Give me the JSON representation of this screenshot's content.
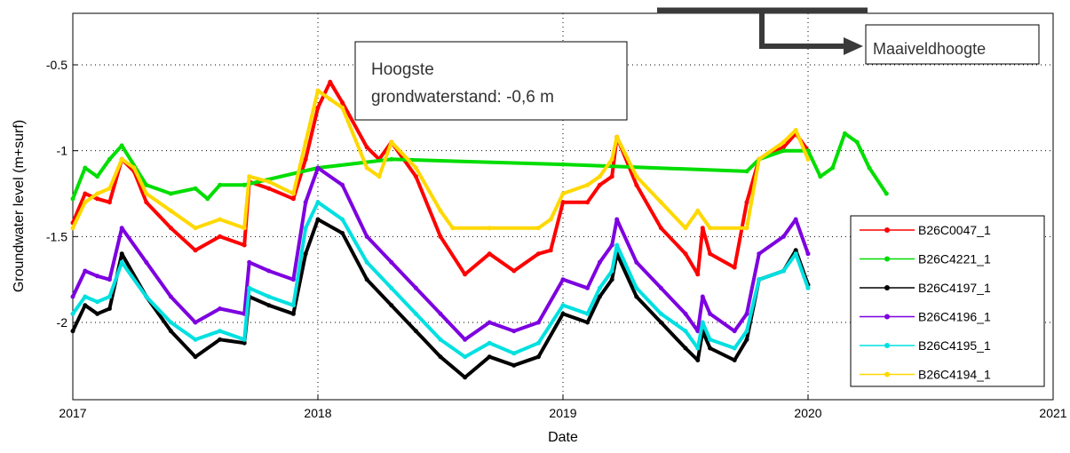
{
  "chart_data": {
    "type": "line",
    "xlabel": "Date",
    "ylabel": "Groundwater level (m+surf)",
    "xlim": [
      2017,
      2021
    ],
    "ylim": [
      -2.45,
      -0.2
    ],
    "y_reversed": true,
    "grid": true,
    "grid_style": "dotted",
    "legend_position": "right",
    "x_ticks": [
      2017,
      2018,
      2019,
      2020,
      2021
    ],
    "x_tick_labels": [
      "2017",
      "2018",
      "2019",
      "2020",
      "2021"
    ],
    "y_ticks": [
      -0.5,
      -1,
      -1.5,
      -2
    ],
    "y_tick_labels": [
      "-0.5",
      "-1",
      "-1.5",
      "-2"
    ],
    "series": [
      {
        "name": "B26C0047_1",
        "color": "#ff0000",
        "points": [
          [
            2017.0,
            -1.42
          ],
          [
            2017.05,
            -1.25
          ],
          [
            2017.1,
            -1.28
          ],
          [
            2017.15,
            -1.3
          ],
          [
            2017.2,
            -1.05
          ],
          [
            2017.25,
            -1.12
          ],
          [
            2017.3,
            -1.3
          ],
          [
            2017.4,
            -1.45
          ],
          [
            2017.5,
            -1.58
          ],
          [
            2017.6,
            -1.5
          ],
          [
            2017.7,
            -1.55
          ],
          [
            2017.72,
            -1.18
          ],
          [
            2017.8,
            -1.22
          ],
          [
            2017.9,
            -1.28
          ],
          [
            2017.95,
            -1.05
          ],
          [
            2018.0,
            -0.75
          ],
          [
            2018.05,
            -0.6
          ],
          [
            2018.1,
            -0.72
          ],
          [
            2018.2,
            -0.98
          ],
          [
            2018.25,
            -1.05
          ],
          [
            2018.3,
            -0.95
          ],
          [
            2018.4,
            -1.15
          ],
          [
            2018.5,
            -1.5
          ],
          [
            2018.6,
            -1.72
          ],
          [
            2018.7,
            -1.6
          ],
          [
            2018.8,
            -1.7
          ],
          [
            2018.9,
            -1.6
          ],
          [
            2018.95,
            -1.58
          ],
          [
            2019.0,
            -1.3
          ],
          [
            2019.1,
            -1.3
          ],
          [
            2019.15,
            -1.2
          ],
          [
            2019.2,
            -1.15
          ],
          [
            2019.22,
            -0.92
          ],
          [
            2019.3,
            -1.2
          ],
          [
            2019.4,
            -1.45
          ],
          [
            2019.5,
            -1.6
          ],
          [
            2019.55,
            -1.72
          ],
          [
            2019.57,
            -1.45
          ],
          [
            2019.6,
            -1.6
          ],
          [
            2019.7,
            -1.68
          ],
          [
            2019.75,
            -1.3
          ],
          [
            2019.8,
            -1.05
          ],
          [
            2019.9,
            -0.98
          ],
          [
            2019.95,
            -0.9
          ],
          [
            2020.0,
            -1.0
          ]
        ]
      },
      {
        "name": "B26C4221_1",
        "color": "#00dd00",
        "points": [
          [
            2017.0,
            -1.28
          ],
          [
            2017.05,
            -1.1
          ],
          [
            2017.1,
            -1.15
          ],
          [
            2017.15,
            -1.05
          ],
          [
            2017.2,
            -0.97
          ],
          [
            2017.3,
            -1.2
          ],
          [
            2017.4,
            -1.25
          ],
          [
            2017.5,
            -1.22
          ],
          [
            2017.55,
            -1.28
          ],
          [
            2017.6,
            -1.2
          ],
          [
            2017.7,
            -1.2
          ],
          [
            2018.0,
            -1.1
          ],
          [
            2018.3,
            -1.05
          ],
          [
            2019.0,
            -1.08
          ],
          [
            2019.75,
            -1.12
          ],
          [
            2019.8,
            -1.05
          ],
          [
            2019.9,
            -1.0
          ],
          [
            2020.0,
            -1.0
          ],
          [
            2020.05,
            -1.15
          ],
          [
            2020.1,
            -1.1
          ],
          [
            2020.15,
            -0.9
          ],
          [
            2020.2,
            -0.95
          ],
          [
            2020.25,
            -1.1
          ],
          [
            2020.32,
            -1.25
          ]
        ]
      },
      {
        "name": "B26C4197_1",
        "color": "#000000",
        "points": [
          [
            2017.0,
            -2.05
          ],
          [
            2017.05,
            -1.9
          ],
          [
            2017.1,
            -1.95
          ],
          [
            2017.15,
            -1.92
          ],
          [
            2017.2,
            -1.6
          ],
          [
            2017.3,
            -1.85
          ],
          [
            2017.4,
            -2.05
          ],
          [
            2017.5,
            -2.2
          ],
          [
            2017.6,
            -2.1
          ],
          [
            2017.7,
            -2.12
          ],
          [
            2017.72,
            -1.85
          ],
          [
            2017.8,
            -1.9
          ],
          [
            2017.9,
            -1.95
          ],
          [
            2017.95,
            -1.6
          ],
          [
            2018.0,
            -1.4
          ],
          [
            2018.1,
            -1.48
          ],
          [
            2018.2,
            -1.75
          ],
          [
            2018.3,
            -1.9
          ],
          [
            2018.4,
            -2.05
          ],
          [
            2018.5,
            -2.2
          ],
          [
            2018.6,
            -2.32
          ],
          [
            2018.7,
            -2.2
          ],
          [
            2018.8,
            -2.25
          ],
          [
            2018.9,
            -2.2
          ],
          [
            2019.0,
            -1.95
          ],
          [
            2019.1,
            -2.0
          ],
          [
            2019.15,
            -1.85
          ],
          [
            2019.2,
            -1.75
          ],
          [
            2019.22,
            -1.6
          ],
          [
            2019.3,
            -1.85
          ],
          [
            2019.4,
            -2.0
          ],
          [
            2019.5,
            -2.15
          ],
          [
            2019.55,
            -2.22
          ],
          [
            2019.57,
            -2.05
          ],
          [
            2019.6,
            -2.15
          ],
          [
            2019.7,
            -2.22
          ],
          [
            2019.75,
            -2.1
          ],
          [
            2019.8,
            -1.75
          ],
          [
            2019.9,
            -1.7
          ],
          [
            2019.95,
            -1.58
          ],
          [
            2020.0,
            -1.78
          ]
        ]
      },
      {
        "name": "B26C4196_1",
        "color": "#7d00e0",
        "points": [
          [
            2017.0,
            -1.85
          ],
          [
            2017.05,
            -1.7
          ],
          [
            2017.1,
            -1.73
          ],
          [
            2017.15,
            -1.75
          ],
          [
            2017.2,
            -1.45
          ],
          [
            2017.3,
            -1.65
          ],
          [
            2017.4,
            -1.85
          ],
          [
            2017.5,
            -2.0
          ],
          [
            2017.6,
            -1.92
          ],
          [
            2017.7,
            -1.95
          ],
          [
            2017.72,
            -1.65
          ],
          [
            2017.8,
            -1.7
          ],
          [
            2017.9,
            -1.75
          ],
          [
            2017.95,
            -1.3
          ],
          [
            2018.0,
            -1.1
          ],
          [
            2018.1,
            -1.2
          ],
          [
            2018.2,
            -1.5
          ],
          [
            2018.3,
            -1.65
          ],
          [
            2018.4,
            -1.8
          ],
          [
            2018.5,
            -1.95
          ],
          [
            2018.6,
            -2.1
          ],
          [
            2018.7,
            -2.0
          ],
          [
            2018.8,
            -2.05
          ],
          [
            2018.9,
            -2.0
          ],
          [
            2019.0,
            -1.75
          ],
          [
            2019.1,
            -1.8
          ],
          [
            2019.15,
            -1.65
          ],
          [
            2019.2,
            -1.55
          ],
          [
            2019.22,
            -1.4
          ],
          [
            2019.3,
            -1.65
          ],
          [
            2019.4,
            -1.8
          ],
          [
            2019.5,
            -1.95
          ],
          [
            2019.55,
            -2.05
          ],
          [
            2019.57,
            -1.85
          ],
          [
            2019.6,
            -1.95
          ],
          [
            2019.7,
            -2.05
          ],
          [
            2019.75,
            -1.95
          ],
          [
            2019.8,
            -1.6
          ],
          [
            2019.9,
            -1.5
          ],
          [
            2019.95,
            -1.4
          ],
          [
            2020.0,
            -1.6
          ]
        ]
      },
      {
        "name": "B26C4195_1",
        "color": "#00e0e0",
        "points": [
          [
            2017.0,
            -1.95
          ],
          [
            2017.05,
            -1.85
          ],
          [
            2017.1,
            -1.88
          ],
          [
            2017.15,
            -1.85
          ],
          [
            2017.2,
            -1.65
          ],
          [
            2017.3,
            -1.85
          ],
          [
            2017.4,
            -2.0
          ],
          [
            2017.5,
            -2.1
          ],
          [
            2017.6,
            -2.05
          ],
          [
            2017.7,
            -2.1
          ],
          [
            2017.72,
            -1.8
          ],
          [
            2017.8,
            -1.85
          ],
          [
            2017.9,
            -1.9
          ],
          [
            2017.95,
            -1.45
          ],
          [
            2018.0,
            -1.3
          ],
          [
            2018.1,
            -1.4
          ],
          [
            2018.2,
            -1.65
          ],
          [
            2018.3,
            -1.8
          ],
          [
            2018.4,
            -1.95
          ],
          [
            2018.5,
            -2.1
          ],
          [
            2018.6,
            -2.2
          ],
          [
            2018.7,
            -2.12
          ],
          [
            2018.8,
            -2.18
          ],
          [
            2018.9,
            -2.12
          ],
          [
            2019.0,
            -1.9
          ],
          [
            2019.1,
            -1.95
          ],
          [
            2019.15,
            -1.8
          ],
          [
            2019.2,
            -1.7
          ],
          [
            2019.22,
            -1.55
          ],
          [
            2019.3,
            -1.8
          ],
          [
            2019.4,
            -1.95
          ],
          [
            2019.5,
            -2.05
          ],
          [
            2019.55,
            -2.15
          ],
          [
            2019.57,
            -2.0
          ],
          [
            2019.6,
            -2.1
          ],
          [
            2019.7,
            -2.15
          ],
          [
            2019.75,
            -2.05
          ],
          [
            2019.8,
            -1.75
          ],
          [
            2019.9,
            -1.7
          ],
          [
            2019.95,
            -1.6
          ],
          [
            2020.0,
            -1.8
          ]
        ]
      },
      {
        "name": "B26C4194_1",
        "color": "#ffd800",
        "points": [
          [
            2017.0,
            -1.45
          ],
          [
            2017.05,
            -1.3
          ],
          [
            2017.1,
            -1.25
          ],
          [
            2017.15,
            -1.22
          ],
          [
            2017.2,
            -1.05
          ],
          [
            2017.25,
            -1.1
          ],
          [
            2017.3,
            -1.25
          ],
          [
            2017.4,
            -1.35
          ],
          [
            2017.5,
            -1.45
          ],
          [
            2017.6,
            -1.4
          ],
          [
            2017.7,
            -1.45
          ],
          [
            2017.72,
            -1.15
          ],
          [
            2017.8,
            -1.18
          ],
          [
            2017.9,
            -1.25
          ],
          [
            2017.95,
            -0.95
          ],
          [
            2018.0,
            -0.65
          ],
          [
            2018.05,
            -0.7
          ],
          [
            2018.1,
            -0.75
          ],
          [
            2018.2,
            -1.1
          ],
          [
            2018.25,
            -1.15
          ],
          [
            2018.3,
            -0.95
          ],
          [
            2018.4,
            -1.1
          ],
          [
            2018.5,
            -1.35
          ],
          [
            2018.55,
            -1.45
          ],
          [
            2018.7,
            -1.45
          ],
          [
            2018.9,
            -1.45
          ],
          [
            2018.95,
            -1.4
          ],
          [
            2019.0,
            -1.25
          ],
          [
            2019.1,
            -1.2
          ],
          [
            2019.15,
            -1.15
          ],
          [
            2019.2,
            -1.05
          ],
          [
            2019.22,
            -0.92
          ],
          [
            2019.3,
            -1.15
          ],
          [
            2019.4,
            -1.3
          ],
          [
            2019.5,
            -1.45
          ],
          [
            2019.55,
            -1.35
          ],
          [
            2019.6,
            -1.45
          ],
          [
            2019.75,
            -1.45
          ],
          [
            2019.8,
            -1.05
          ],
          [
            2019.9,
            -0.95
          ],
          [
            2019.95,
            -0.88
          ],
          [
            2020.0,
            -1.05
          ]
        ]
      }
    ]
  },
  "annotations": {
    "hoogste_line1": "Hoogste",
    "hoogste_line2": "grondwaterstand: -0,6 m",
    "maaiveld": "Maaiveldhoogte"
  }
}
